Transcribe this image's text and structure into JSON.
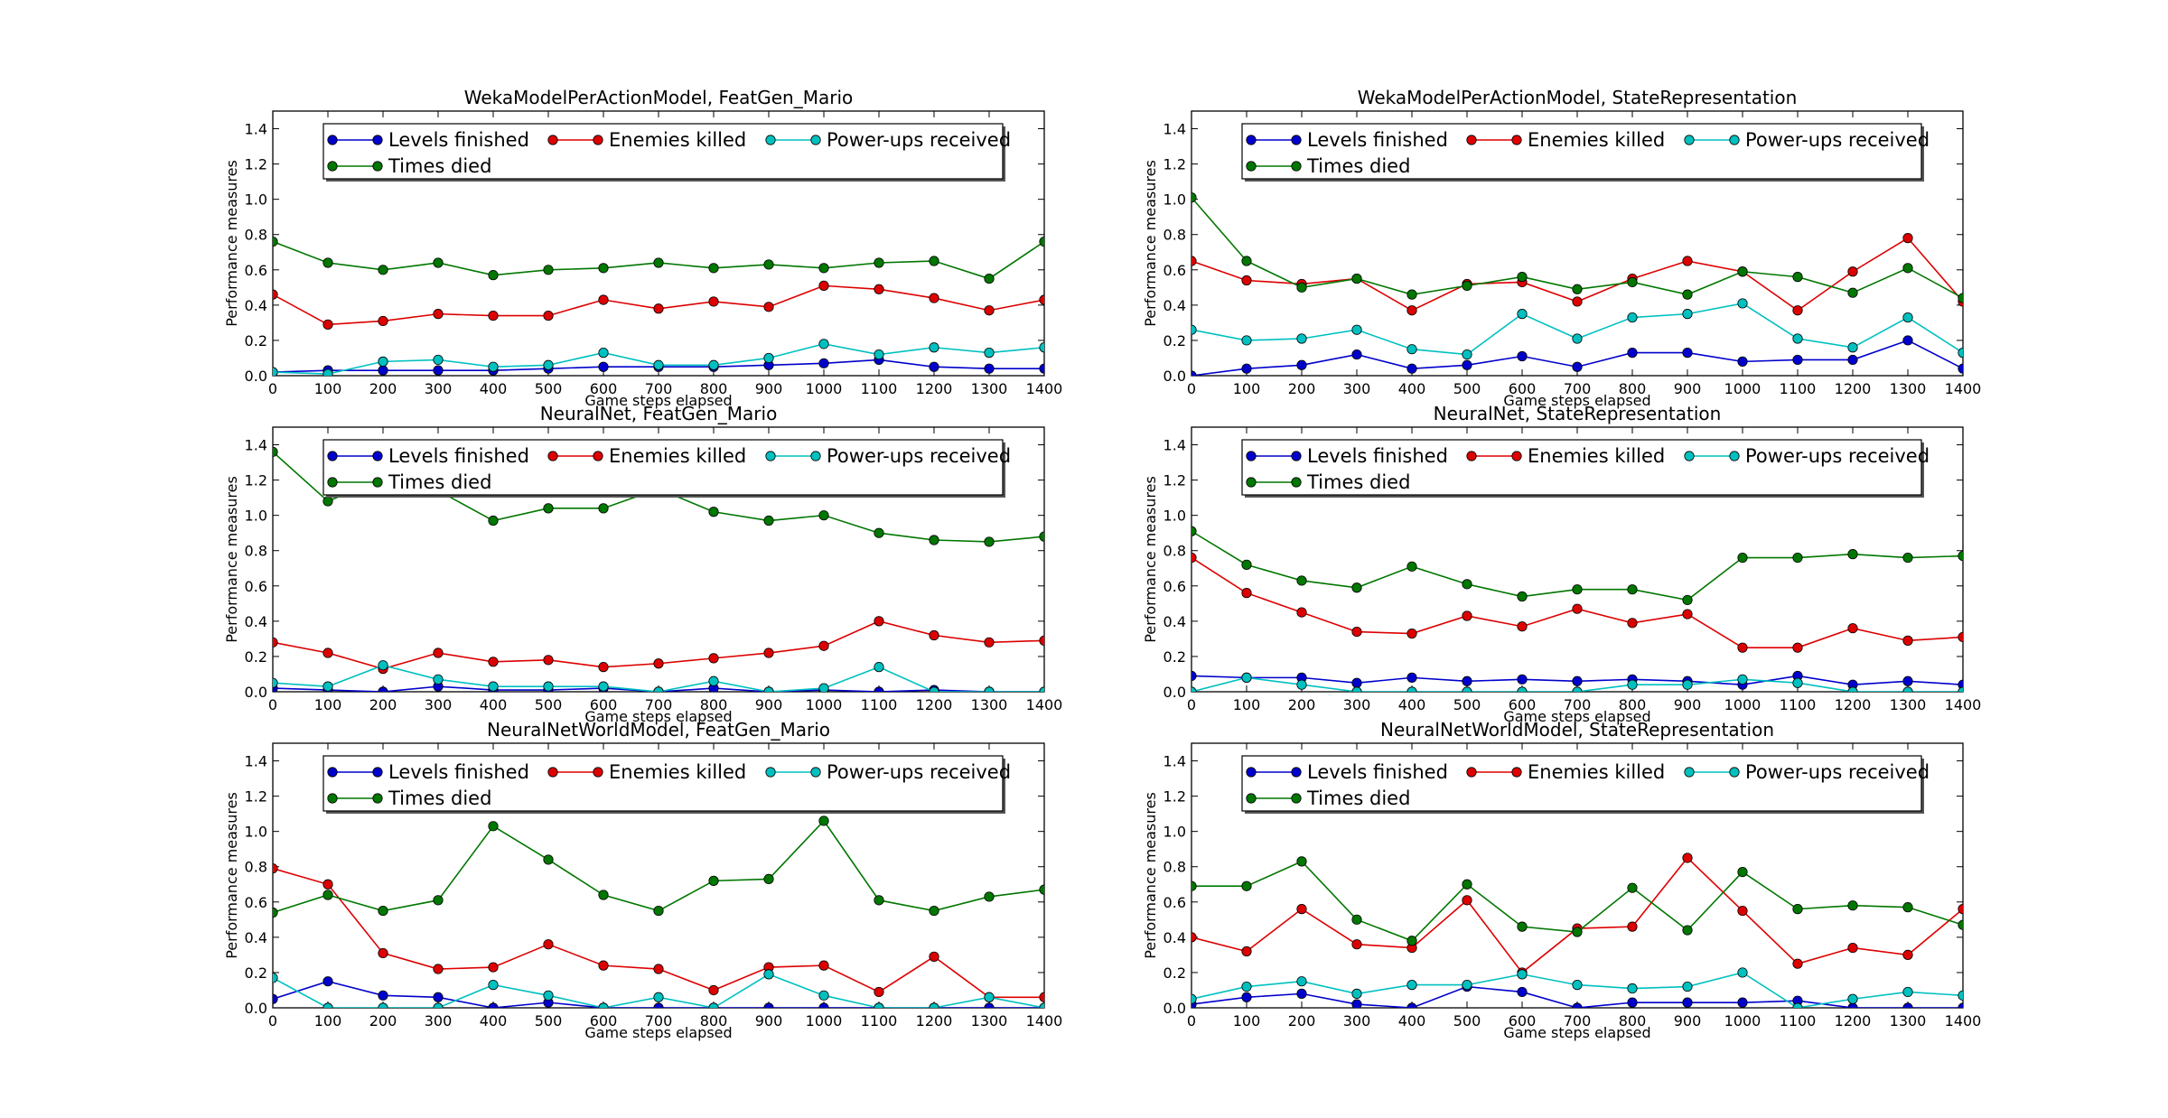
{
  "figure": {
    "series_colors": {
      "Levels finished": "#0000cc",
      "Enemies killed": "#dd0000",
      "Power-ups received": "#00c0c0",
      "Times died": "#007700"
    }
  },
  "chart_data": [
    {
      "type": "line",
      "title": "WekaModelPerActionModel, FeatGen_Mario",
      "xlabel": "Game steps elapsed",
      "ylabel": "Performance measures",
      "x": [
        0,
        100,
        200,
        300,
        400,
        500,
        600,
        700,
        800,
        900,
        1000,
        1100,
        1200,
        1300,
        1400
      ],
      "xlim": [
        0,
        1400
      ],
      "ylim": [
        0.0,
        1.5
      ],
      "xticks": [
        "0",
        "100",
        "200",
        "300",
        "400",
        "500",
        "600",
        "700",
        "800",
        "900",
        "1000",
        "1100",
        "1200",
        "1300",
        "1400"
      ],
      "yticks": [
        "0.0",
        "0.2",
        "0.4",
        "0.6",
        "0.8",
        "1.0",
        "1.2",
        "1.4"
      ],
      "legend": "top-center",
      "grid": false,
      "series": [
        {
          "name": "Levels finished",
          "values": [
            0.02,
            0.03,
            0.03,
            0.03,
            0.03,
            0.04,
            0.05,
            0.05,
            0.05,
            0.06,
            0.07,
            0.09,
            0.05,
            0.04,
            0.04
          ]
        },
        {
          "name": "Enemies killed",
          "values": [
            0.46,
            0.29,
            0.31,
            0.35,
            0.34,
            0.34,
            0.43,
            0.38,
            0.42,
            0.39,
            0.51,
            0.49,
            0.44,
            0.37,
            0.43
          ]
        },
        {
          "name": "Power-ups received",
          "values": [
            0.02,
            0.01,
            0.08,
            0.09,
            0.05,
            0.06,
            0.13,
            0.06,
            0.06,
            0.1,
            0.18,
            0.12,
            0.16,
            0.13,
            0.16
          ]
        },
        {
          "name": "Times died",
          "values": [
            0.76,
            0.64,
            0.6,
            0.64,
            0.57,
            0.6,
            0.61,
            0.64,
            0.61,
            0.63,
            0.61,
            0.64,
            0.65,
            0.55,
            0.76
          ]
        }
      ]
    },
    {
      "type": "line",
      "title": "WekaModelPerActionModel, StateRepresentation",
      "xlabel": "Game steps elapsed",
      "ylabel": "Performance measures",
      "x": [
        0,
        100,
        200,
        300,
        400,
        500,
        600,
        700,
        800,
        900,
        1000,
        1100,
        1200,
        1300,
        1400
      ],
      "xlim": [
        0,
        1400
      ],
      "ylim": [
        0.0,
        1.5
      ],
      "xticks": [
        "0",
        "100",
        "200",
        "300",
        "400",
        "500",
        "600",
        "700",
        "800",
        "900",
        "1000",
        "1100",
        "1200",
        "1300",
        "1400"
      ],
      "yticks": [
        "0.0",
        "0.2",
        "0.4",
        "0.6",
        "0.8",
        "1.0",
        "1.2",
        "1.4"
      ],
      "legend": "top-center",
      "grid": false,
      "series": [
        {
          "name": "Levels finished",
          "values": [
            0.0,
            0.04,
            0.06,
            0.12,
            0.04,
            0.06,
            0.11,
            0.05,
            0.13,
            0.13,
            0.08,
            0.09,
            0.09,
            0.2,
            0.04
          ]
        },
        {
          "name": "Enemies killed",
          "values": [
            0.65,
            0.54,
            0.52,
            0.55,
            0.37,
            0.52,
            0.53,
            0.42,
            0.55,
            0.65,
            0.59,
            0.37,
            0.59,
            0.78,
            0.42
          ]
        },
        {
          "name": "Power-ups received",
          "values": [
            0.26,
            0.2,
            0.21,
            0.26,
            0.15,
            0.12,
            0.35,
            0.21,
            0.33,
            0.35,
            0.41,
            0.21,
            0.16,
            0.33,
            0.13
          ]
        },
        {
          "name": "Times died",
          "values": [
            1.01,
            0.65,
            0.5,
            0.55,
            0.46,
            0.51,
            0.56,
            0.49,
            0.53,
            0.46,
            0.59,
            0.56,
            0.47,
            0.61,
            0.44
          ]
        }
      ]
    },
    {
      "type": "line",
      "title": "NeuralNet, FeatGen_Mario",
      "xlabel": "Game steps elapsed",
      "ylabel": "Performance measures",
      "x": [
        0,
        100,
        200,
        300,
        400,
        500,
        600,
        700,
        800,
        900,
        1000,
        1100,
        1200,
        1300,
        1400
      ],
      "xlim": [
        0,
        1400
      ],
      "ylim": [
        0.0,
        1.5
      ],
      "xticks": [
        "0",
        "100",
        "200",
        "300",
        "400",
        "500",
        "600",
        "700",
        "800",
        "900",
        "1000",
        "1100",
        "1200",
        "1300",
        "1400"
      ],
      "yticks": [
        "0.0",
        "0.2",
        "0.4",
        "0.6",
        "0.8",
        "1.0",
        "1.2",
        "1.4"
      ],
      "legend": "top-center",
      "grid": false,
      "series": [
        {
          "name": "Levels finished",
          "values": [
            0.02,
            0.01,
            0.0,
            0.03,
            0.01,
            0.01,
            0.02,
            0.0,
            0.02,
            0.0,
            0.01,
            0.0,
            0.01,
            0.0,
            0.0
          ]
        },
        {
          "name": "Enemies killed",
          "values": [
            0.28,
            0.22,
            0.13,
            0.22,
            0.17,
            0.18,
            0.14,
            0.16,
            0.19,
            0.22,
            0.26,
            0.4,
            0.32,
            0.28,
            0.29
          ]
        },
        {
          "name": "Power-ups received",
          "values": [
            0.05,
            0.03,
            0.15,
            0.07,
            0.03,
            0.03,
            0.03,
            0.0,
            0.06,
            0.0,
            0.02,
            0.14,
            0.0,
            0.0,
            0.0
          ]
        },
        {
          "name": "Times died",
          "values": [
            1.36,
            1.08,
            1.21,
            1.14,
            0.97,
            1.04,
            1.04,
            1.15,
            1.02,
            0.97,
            1.0,
            0.9,
            0.86,
            0.85,
            0.88
          ]
        }
      ]
    },
    {
      "type": "line",
      "title": "NeuralNet, StateRepresentation",
      "xlabel": "Game steps elapsed",
      "ylabel": "Performance measures",
      "x": [
        0,
        100,
        200,
        300,
        400,
        500,
        600,
        700,
        800,
        900,
        1000,
        1100,
        1200,
        1300,
        1400
      ],
      "xlim": [
        0,
        1400
      ],
      "ylim": [
        0.0,
        1.5
      ],
      "xticks": [
        "0",
        "100",
        "200",
        "300",
        "400",
        "500",
        "600",
        "700",
        "800",
        "900",
        "1000",
        "1100",
        "1200",
        "1300",
        "1400"
      ],
      "yticks": [
        "0.0",
        "0.2",
        "0.4",
        "0.6",
        "0.8",
        "1.0",
        "1.2",
        "1.4"
      ],
      "legend": "top-center",
      "grid": false,
      "series": [
        {
          "name": "Levels finished",
          "values": [
            0.09,
            0.08,
            0.08,
            0.05,
            0.08,
            0.06,
            0.07,
            0.06,
            0.07,
            0.06,
            0.04,
            0.09,
            0.04,
            0.06,
            0.04
          ]
        },
        {
          "name": "Enemies killed",
          "values": [
            0.76,
            0.56,
            0.45,
            0.34,
            0.33,
            0.43,
            0.37,
            0.47,
            0.39,
            0.44,
            0.25,
            0.25,
            0.36,
            0.29,
            0.31
          ]
        },
        {
          "name": "Power-ups received",
          "values": [
            0.0,
            0.08,
            0.04,
            0.0,
            0.0,
            0.0,
            0.0,
            0.0,
            0.04,
            0.04,
            0.07,
            0.05,
            0.0,
            0.0,
            0.0
          ]
        },
        {
          "name": "Times died",
          "values": [
            0.91,
            0.72,
            0.63,
            0.59,
            0.71,
            0.61,
            0.54,
            0.58,
            0.58,
            0.52,
            0.76,
            0.76,
            0.78,
            0.76,
            0.77
          ]
        }
      ]
    },
    {
      "type": "line",
      "title": "NeuralNetWorldModel, FeatGen_Mario",
      "xlabel": "Game steps elapsed",
      "ylabel": "Performance measures",
      "x": [
        0,
        100,
        200,
        300,
        400,
        500,
        600,
        700,
        800,
        900,
        1000,
        1100,
        1200,
        1300,
        1400
      ],
      "xlim": [
        0,
        1400
      ],
      "ylim": [
        0.0,
        1.5
      ],
      "xticks": [
        "0",
        "100",
        "200",
        "300",
        "400",
        "500",
        "600",
        "700",
        "800",
        "900",
        "1000",
        "1100",
        "1200",
        "1300",
        "1400"
      ],
      "yticks": [
        "0.0",
        "0.2",
        "0.4",
        "0.6",
        "0.8",
        "1.0",
        "1.2",
        "1.4"
      ],
      "legend": "top-center",
      "grid": false,
      "series": [
        {
          "name": "Levels finished",
          "values": [
            0.05,
            0.15,
            0.07,
            0.06,
            0.0,
            0.03,
            0.0,
            0.0,
            0.0,
            0.0,
            0.0,
            0.0,
            0.0,
            0.0,
            0.0
          ]
        },
        {
          "name": "Enemies killed",
          "values": [
            0.79,
            0.7,
            0.31,
            0.22,
            0.23,
            0.36,
            0.24,
            0.22,
            0.1,
            0.23,
            0.24,
            0.09,
            0.29,
            0.06,
            0.06
          ]
        },
        {
          "name": "Power-ups received",
          "values": [
            0.17,
            0.0,
            0.0,
            0.0,
            0.13,
            0.07,
            0.0,
            0.06,
            0.0,
            0.19,
            0.07,
            0.0,
            0.0,
            0.06,
            0.0
          ]
        },
        {
          "name": "Times died",
          "values": [
            0.54,
            0.64,
            0.55,
            0.61,
            1.03,
            0.84,
            0.64,
            0.55,
            0.72,
            0.73,
            1.06,
            0.61,
            0.55,
            0.63,
            0.67
          ]
        }
      ]
    },
    {
      "type": "line",
      "title": "NeuralNetWorldModel, StateRepresentation",
      "xlabel": "Game steps elapsed",
      "ylabel": "Performance measures",
      "x": [
        0,
        100,
        200,
        300,
        400,
        500,
        600,
        700,
        800,
        900,
        1000,
        1100,
        1200,
        1300,
        1400
      ],
      "xlim": [
        0,
        1400
      ],
      "ylim": [
        0.0,
        1.5
      ],
      "xticks": [
        "0",
        "100",
        "200",
        "300",
        "400",
        "500",
        "600",
        "700",
        "800",
        "900",
        "1000",
        "1100",
        "1200",
        "1300",
        "1400"
      ],
      "yticks": [
        "0.0",
        "0.2",
        "0.4",
        "0.6",
        "0.8",
        "1.0",
        "1.2",
        "1.4"
      ],
      "legend": "top-center",
      "grid": false,
      "series": [
        {
          "name": "Levels finished",
          "values": [
            0.02,
            0.06,
            0.08,
            0.02,
            0.0,
            0.12,
            0.09,
            0.0,
            0.03,
            0.03,
            0.03,
            0.04,
            0.0,
            0.0,
            0.0
          ]
        },
        {
          "name": "Enemies killed",
          "values": [
            0.4,
            0.32,
            0.56,
            0.36,
            0.34,
            0.61,
            0.2,
            0.45,
            0.46,
            0.85,
            0.55,
            0.25,
            0.34,
            0.3,
            0.56
          ]
        },
        {
          "name": "Power-ups received",
          "values": [
            0.05,
            0.12,
            0.15,
            0.08,
            0.13,
            0.13,
            0.19,
            0.13,
            0.11,
            0.12,
            0.2,
            0.0,
            0.05,
            0.09,
            0.07
          ]
        },
        {
          "name": "Times died",
          "values": [
            0.69,
            0.69,
            0.83,
            0.5,
            0.38,
            0.7,
            0.46,
            0.43,
            0.68,
            0.44,
            0.77,
            0.56,
            0.58,
            0.57,
            0.47
          ]
        }
      ]
    }
  ]
}
